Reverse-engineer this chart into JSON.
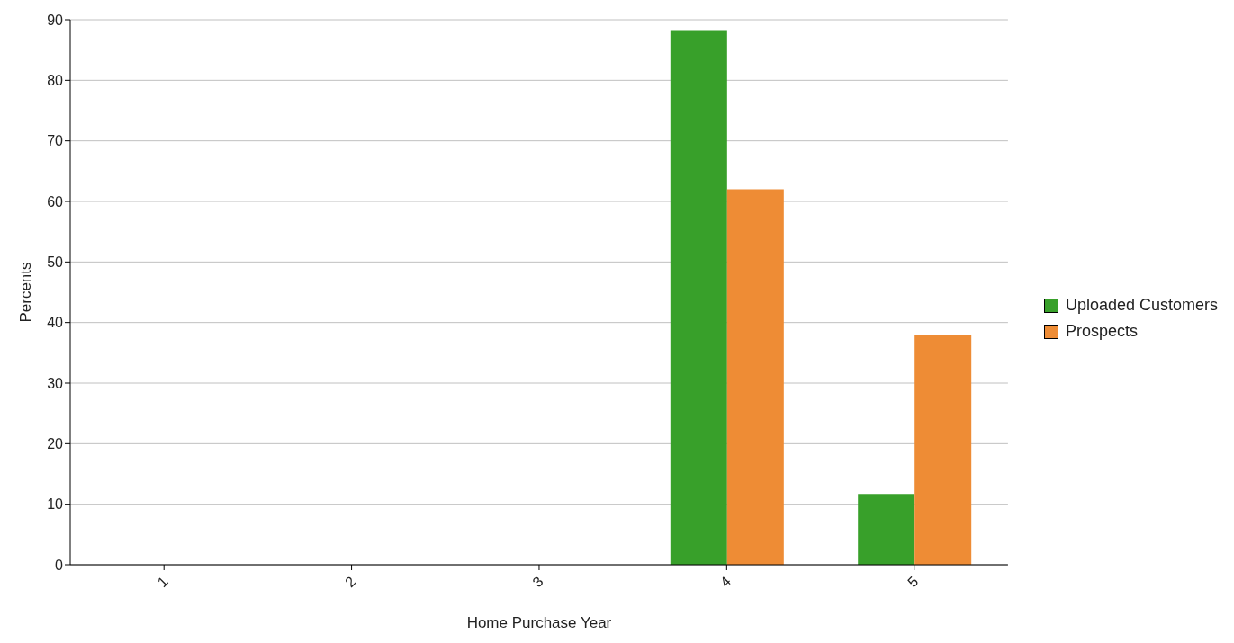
{
  "chart_data": {
    "type": "bar",
    "xlabel": "Home Purchase Year",
    "ylabel": "Percents",
    "categories": [
      "1",
      "2",
      "3",
      "4",
      "5"
    ],
    "series": [
      {
        "name": "Uploaded Customers",
        "color": "#38a02a",
        "values": [
          0,
          0,
          0,
          88.3,
          11.7
        ]
      },
      {
        "name": "Prospects",
        "color": "#ee8c35",
        "values": [
          0,
          0,
          0,
          62,
          38
        ]
      }
    ],
    "ylim": [
      0,
      90
    ],
    "yticks": [
      0,
      10,
      20,
      30,
      40,
      50,
      60,
      70,
      80,
      90
    ],
    "grid": "y",
    "legend": "right"
  }
}
